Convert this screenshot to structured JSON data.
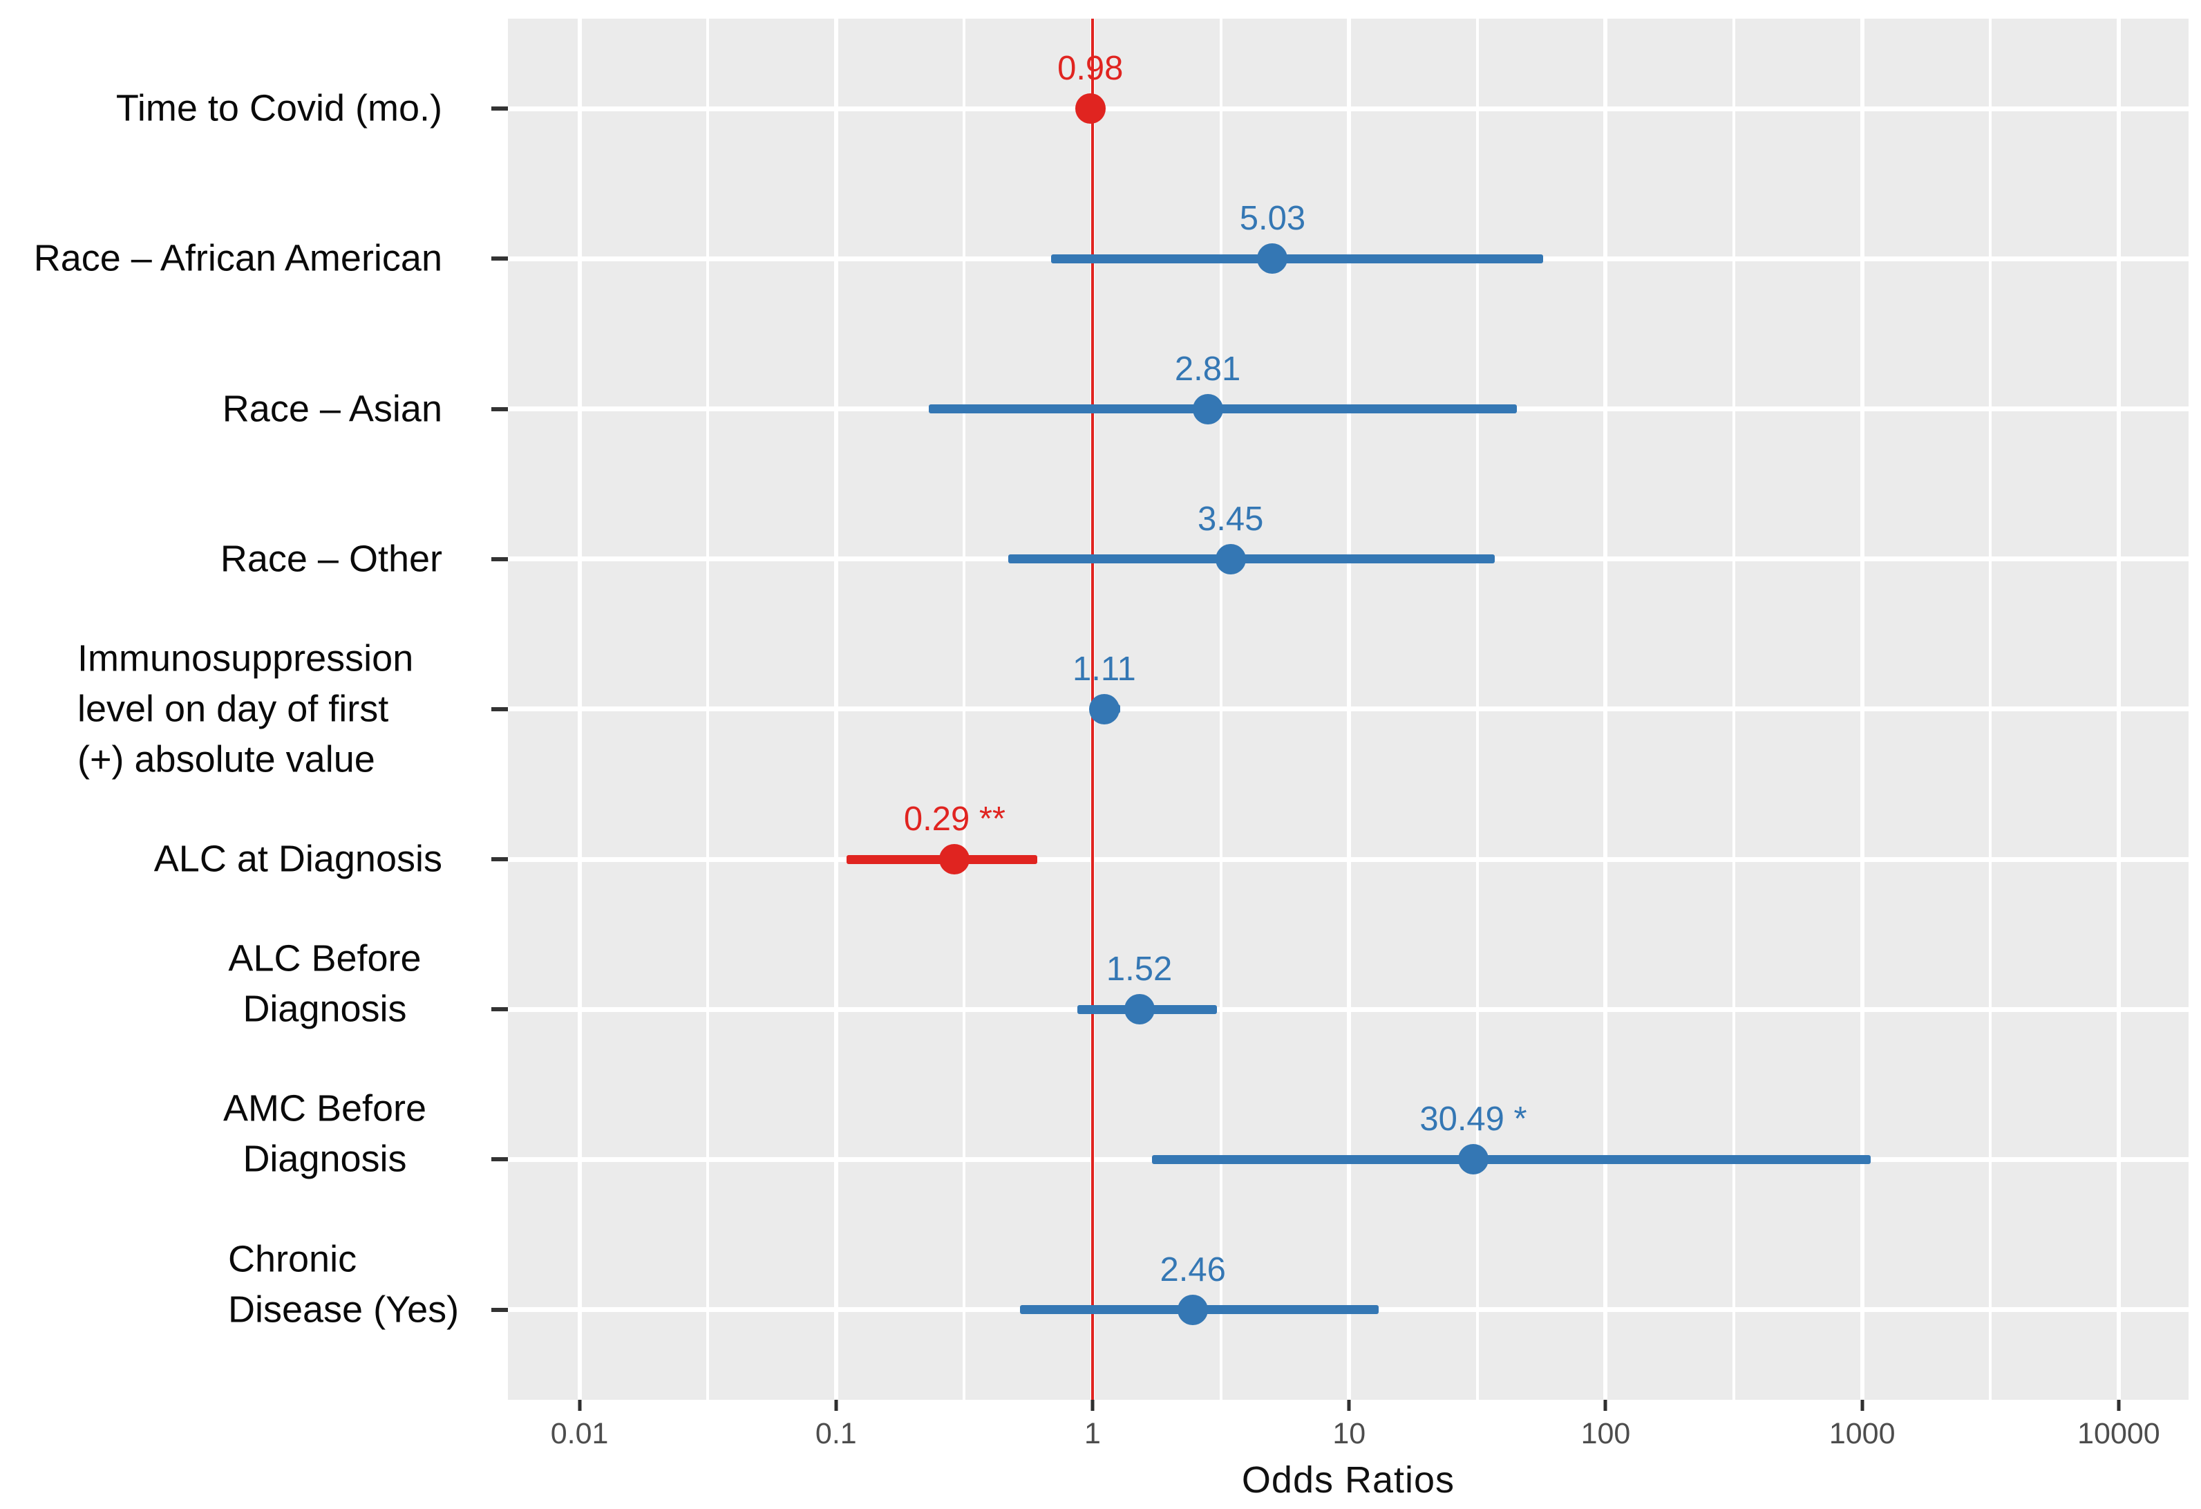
{
  "chart_data": {
    "type": "scatter",
    "variant": "forest-plot",
    "title": "",
    "xlabel": "Odds Ratios",
    "x_scale": "log10",
    "x_ticks": [
      0.01,
      0.1,
      1,
      10,
      100,
      1000,
      10000
    ],
    "x_tick_labels": [
      "0.01",
      "0.1",
      "1",
      "10",
      "100",
      "1000",
      "10000"
    ],
    "x_range": [
      0.00526,
      18720
    ],
    "reference_line_x": 1,
    "grid": "on",
    "legend": "none",
    "colors": {
      "blue_series": "#3477B4",
      "red_series": "#E02420",
      "reference_line": "#E02420",
      "panel_background": "#EBEBEB",
      "gridline": "#FFFFFF",
      "axis_tick_text": "#4D4D4D",
      "tick_mark": "#2F2F2F",
      "label_text": "#0A0A0A"
    },
    "rows": [
      {
        "label": "Time to Covid (mo.)",
        "odds_ratio": 0.98,
        "value_label": "0.98",
        "significance": "",
        "ci_low": 0.96,
        "ci_high": 1.01,
        "color": "#E02420"
      },
      {
        "label": "Race – African American",
        "odds_ratio": 5.03,
        "value_label": "5.03",
        "significance": "",
        "ci_low": 0.69,
        "ci_high": 57,
        "color": "#3477B4"
      },
      {
        "label": "Race – Asian",
        "odds_ratio": 2.81,
        "value_label": "2.81",
        "significance": "",
        "ci_low": 0.23,
        "ci_high": 45,
        "color": "#3477B4"
      },
      {
        "label": "Race – Other",
        "odds_ratio": 3.45,
        "value_label": "3.45",
        "significance": "",
        "ci_low": 0.47,
        "ci_high": 37,
        "color": "#3477B4"
      },
      {
        "label": "Immunosuppression\nlevel on day of first\n(+) absolute value",
        "odds_ratio": 1.11,
        "value_label": "1.11",
        "significance": "",
        "ci_low": 0.98,
        "ci_high": 1.28,
        "color": "#3477B4"
      },
      {
        "label": "ALC at Diagnosis",
        "odds_ratio": 0.29,
        "value_label": "0.29",
        "significance": "**",
        "ci_low": 0.11,
        "ci_high": 0.61,
        "color": "#E02420"
      },
      {
        "label": "ALC Before\nDiagnosis",
        "odds_ratio": 1.52,
        "value_label": "1.52",
        "significance": "",
        "ci_low": 0.87,
        "ci_high": 3.05,
        "color": "#3477B4"
      },
      {
        "label": "AMC Before\nDiagnosis",
        "odds_ratio": 30.49,
        "value_label": "30.49",
        "significance": "*",
        "ci_low": 1.7,
        "ci_high": 1080,
        "color": "#3477B4"
      },
      {
        "label": "Chronic\nDisease (Yes)",
        "odds_ratio": 2.46,
        "value_label": "2.46",
        "significance": "",
        "ci_low": 0.52,
        "ci_high": 13,
        "color": "#3477B4"
      }
    ]
  }
}
